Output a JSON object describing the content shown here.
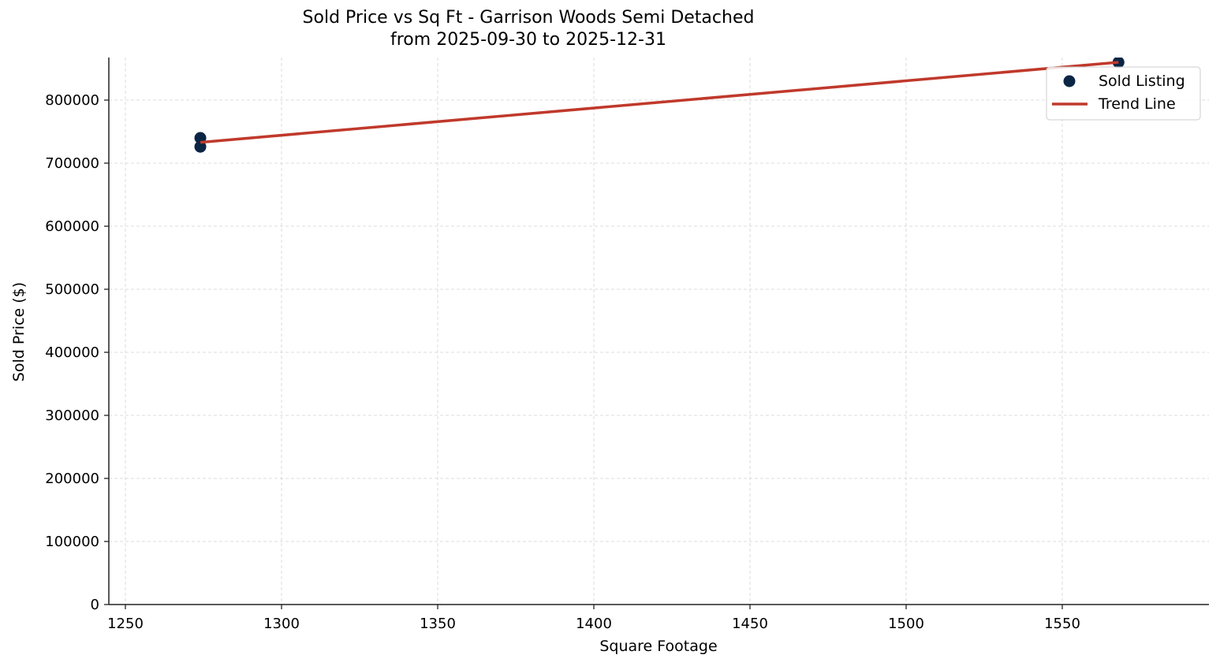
{
  "chart_data": {
    "type": "scatter",
    "title": "Sold Price vs Sq Ft - Garrison Woods Semi Detached",
    "subtitle": "from 2025-09-30 to 2025-12-31",
    "xlabel": "Square Footage",
    "ylabel": "Sold Price ($)",
    "xlim": [
      1245,
      1597
    ],
    "ylim": [
      0,
      868000
    ],
    "x_ticks": [
      1250,
      1300,
      1350,
      1400,
      1450,
      1500,
      1550
    ],
    "y_ticks": [
      0,
      100000,
      200000,
      300000,
      400000,
      500000,
      600000,
      700000,
      800000
    ],
    "grid": true,
    "legend_position": "upper right",
    "series": [
      {
        "name": "Sold Listing",
        "kind": "scatter",
        "color": "#0b2545",
        "points": [
          {
            "x": 1274,
            "y": 740000
          },
          {
            "x": 1274,
            "y": 726000
          },
          {
            "x": 1568,
            "y": 860000
          }
        ]
      },
      {
        "name": "Trend Line",
        "kind": "line",
        "color": "#c0392b",
        "points": [
          {
            "x": 1274,
            "y": 733000
          },
          {
            "x": 1568,
            "y": 860000
          }
        ]
      }
    ]
  }
}
